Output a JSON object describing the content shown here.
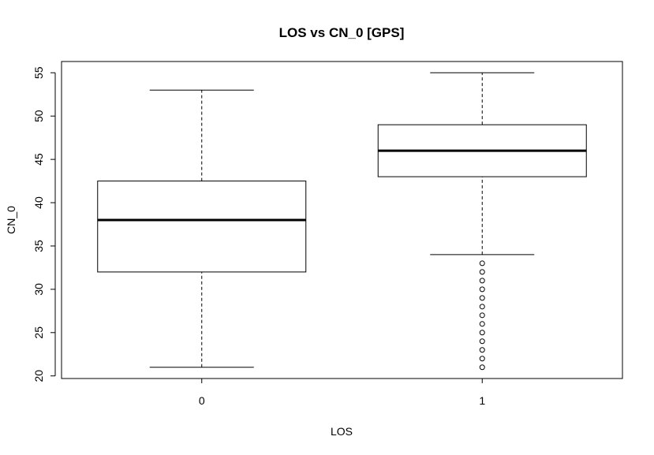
{
  "chart_data": {
    "type": "boxplot",
    "title": "LOS vs CN_0 [GPS]",
    "xlabel": "LOS",
    "ylabel": "CN_0",
    "ylim": [
      19.7,
      56.3
    ],
    "yticks": [
      "20",
      "25",
      "30",
      "35",
      "40",
      "45",
      "50",
      "55"
    ],
    "grid": false,
    "categories": [
      "0",
      "1"
    ],
    "boxes": [
      {
        "category": "0",
        "whisker_low": 21,
        "q1": 32,
        "median": 38,
        "q3": 42.5,
        "whisker_high": 53,
        "outliers": []
      },
      {
        "category": "1",
        "whisker_low": 34,
        "q1": 43,
        "median": 46,
        "q3": 49,
        "whisker_high": 55,
        "outliers": [
          21,
          22,
          23,
          24,
          25,
          26,
          27,
          28,
          29,
          30,
          31,
          32,
          33
        ]
      }
    ]
  }
}
